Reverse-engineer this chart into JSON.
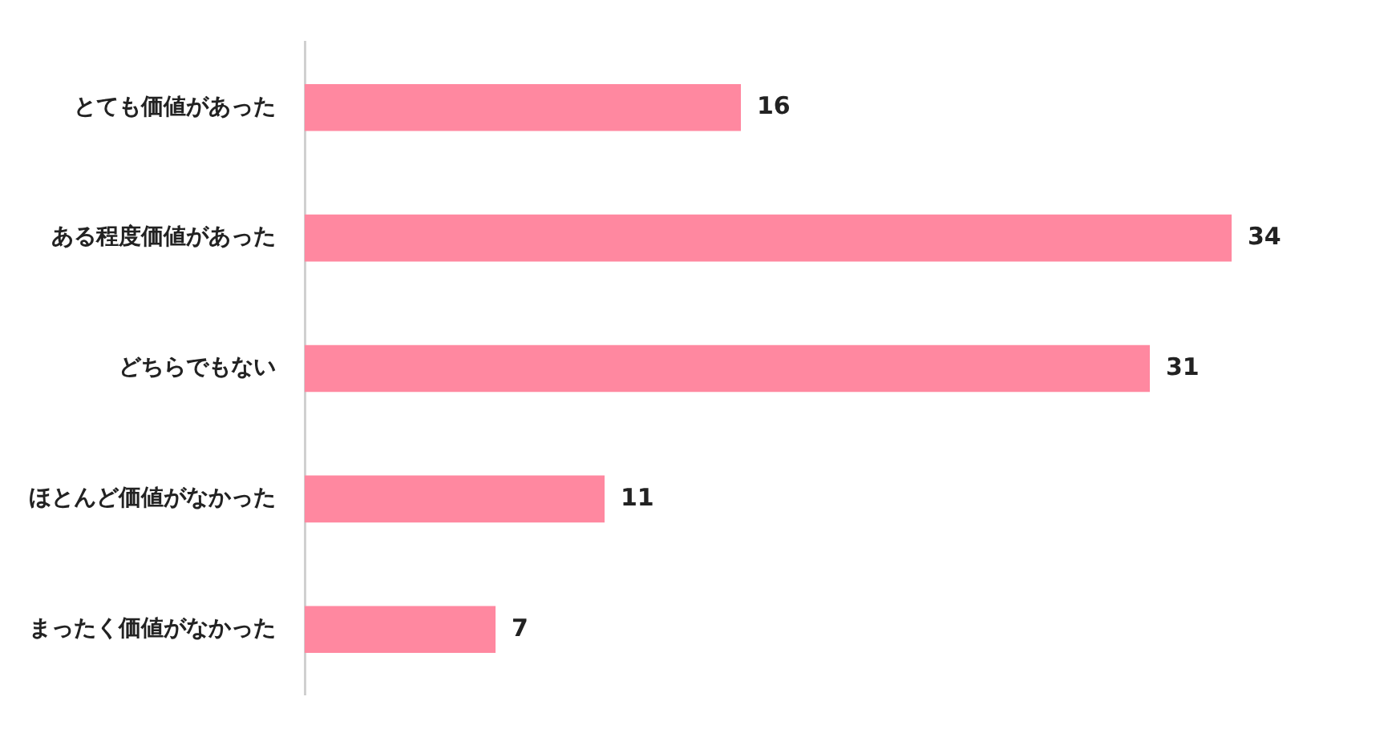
{
  "chart_data": {
    "type": "bar",
    "orientation": "horizontal",
    "categories": [
      "とても価値があった",
      "ある程度価値があった",
      "どちらでもない",
      "ほとんど価値がなかった",
      "まったく価値がなかった"
    ],
    "values": [
      16,
      34,
      31,
      11,
      7
    ],
    "color": "#ff88a0",
    "data_labels": true,
    "grid": false,
    "legend": false,
    "tick_labels": "y"
  }
}
